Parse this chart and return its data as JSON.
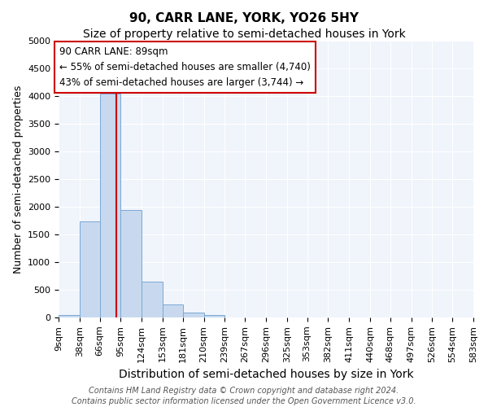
{
  "title": "90, CARR LANE, YORK, YO26 5HY",
  "subtitle": "Size of property relative to semi-detached houses in York",
  "xlabel": "Distribution of semi-detached houses by size in York",
  "ylabel": "Number of semi-detached properties",
  "footer_line1": "Contains HM Land Registry data © Crown copyright and database right 2024.",
  "footer_line2": "Contains public sector information licensed under the Open Government Licence v3.0.",
  "annotation_title": "90 CARR LANE: 89sqm",
  "annotation_line1": "← 55% of semi-detached houses are smaller (4,740)",
  "annotation_line2": "43% of semi-detached houses are larger (3,744) →",
  "property_size": 89,
  "bin_edges": [
    9,
    38,
    66,
    95,
    124,
    153,
    181,
    210,
    239,
    267,
    296,
    325,
    353,
    382,
    411,
    440,
    468,
    497,
    526,
    554,
    583
  ],
  "bin_counts": [
    50,
    1730,
    4050,
    1940,
    650,
    230,
    85,
    45,
    0,
    0,
    0,
    0,
    0,
    0,
    0,
    0,
    0,
    0,
    0,
    0
  ],
  "bar_color": "#c8d9ef",
  "bar_edge_color": "#7aa8d4",
  "red_line_color": "#cc0000",
  "background_color": "#f0f4fb",
  "ylim": [
    0,
    5000
  ],
  "yticks": [
    0,
    500,
    1000,
    1500,
    2000,
    2500,
    3000,
    3500,
    4000,
    4500,
    5000
  ],
  "annotation_box_color": "white",
  "annotation_box_edge": "#cc0000",
  "title_fontsize": 11,
  "subtitle_fontsize": 10,
  "xlabel_fontsize": 10,
  "ylabel_fontsize": 9,
  "tick_fontsize": 8,
  "annotation_fontsize": 8.5,
  "footer_fontsize": 7
}
